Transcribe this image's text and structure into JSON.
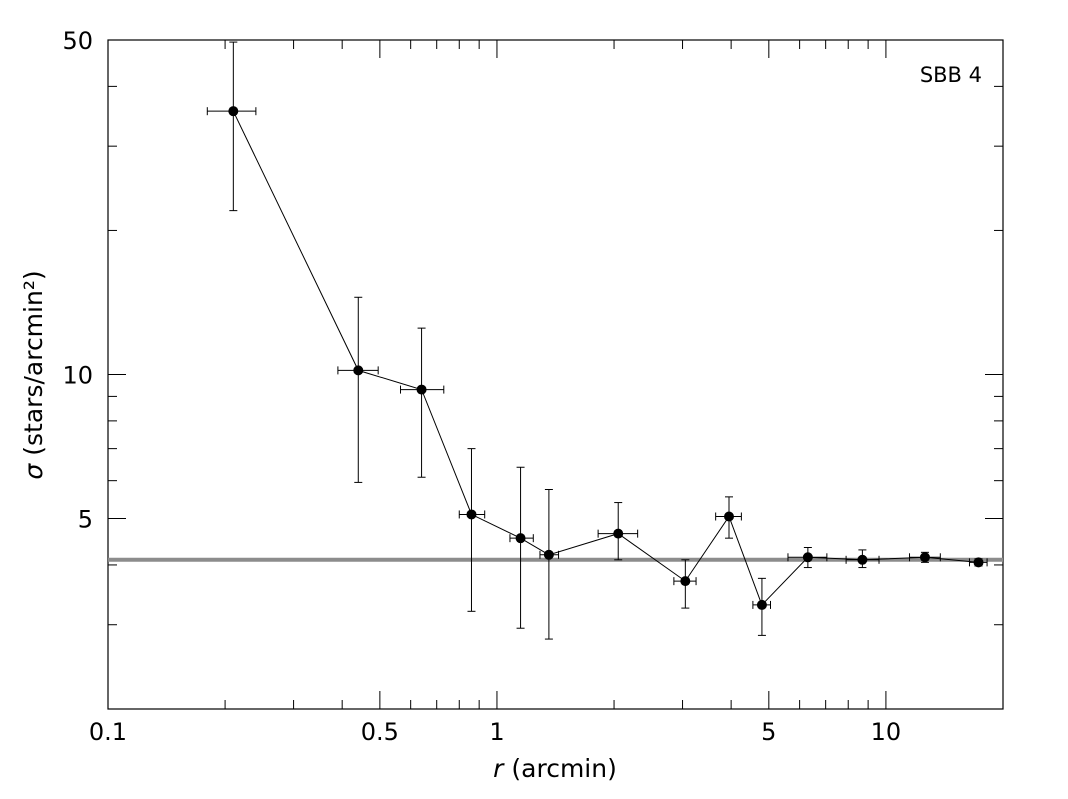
{
  "chart_data": {
    "type": "scatter",
    "xscale": "log",
    "yscale": "log",
    "xlim": [
      0.1,
      20
    ],
    "ylim": [
      2,
      50
    ],
    "xlabel_var": "r",
    "xlabel_unit": "(arcmin)",
    "ylabel_var": "σ",
    "ylabel_unit": "(stars/arcmin²)",
    "annotation": "SBB 4",
    "x_tick_labels": [
      {
        "value": 0.1,
        "label": "0.1"
      },
      {
        "value": 0.5,
        "label": "0.5"
      },
      {
        "value": 1,
        "label": "1"
      },
      {
        "value": 5,
        "label": "5"
      },
      {
        "value": 10,
        "label": "10"
      }
    ],
    "y_tick_labels": [
      {
        "value": 5,
        "label": "5"
      },
      {
        "value": 10,
        "label": "10"
      },
      {
        "value": 50,
        "label": "50"
      }
    ],
    "background_level": 4.1,
    "background_color": "#8c8c8c",
    "points": [
      {
        "x": 0.21,
        "y": 35.5,
        "xerr": [
          0.18,
          0.24
        ],
        "yerr": [
          22.0,
          49.5
        ]
      },
      {
        "x": 0.44,
        "y": 10.2,
        "xerr": [
          0.39,
          0.495
        ],
        "yerr": [
          5.95,
          14.5
        ]
      },
      {
        "x": 0.64,
        "y": 9.3,
        "xerr": [
          0.565,
          0.73
        ],
        "yerr": [
          6.1,
          12.5
        ]
      },
      {
        "x": 0.86,
        "y": 5.1,
        "xerr": [
          0.8,
          0.93
        ],
        "yerr": [
          3.2,
          7.0
        ]
      },
      {
        "x": 1.15,
        "y": 4.55,
        "xerr": [
          1.08,
          1.24
        ],
        "yerr": [
          2.95,
          6.4
        ]
      },
      {
        "x": 1.36,
        "y": 4.2,
        "xerr": [
          1.29,
          1.44
        ],
        "yerr": [
          2.8,
          5.75
        ]
      },
      {
        "x": 2.05,
        "y": 4.65,
        "xerr": [
          1.82,
          2.3
        ],
        "yerr": [
          4.1,
          5.4
        ]
      },
      {
        "x": 3.05,
        "y": 3.7,
        "xerr": [
          2.85,
          3.25
        ],
        "yerr": [
          3.25,
          4.1
        ]
      },
      {
        "x": 3.95,
        "y": 5.05,
        "xerr": [
          3.65,
          4.25
        ],
        "yerr": [
          4.55,
          5.55
        ]
      },
      {
        "x": 4.8,
        "y": 3.3,
        "xerr": [
          4.55,
          5.05
        ],
        "yerr": [
          2.85,
          3.75
        ]
      },
      {
        "x": 6.3,
        "y": 4.15,
        "xerr": [
          5.6,
          7.05
        ],
        "yerr": [
          3.95,
          4.35
        ]
      },
      {
        "x": 8.7,
        "y": 4.1,
        "xerr": [
          7.9,
          9.6
        ],
        "yerr": [
          3.95,
          4.3
        ]
      },
      {
        "x": 12.6,
        "y": 4.15,
        "xerr": [
          11.5,
          13.8
        ],
        "yerr": [
          4.05,
          4.25
        ]
      },
      {
        "x": 17.3,
        "y": 4.05,
        "xerr": [
          16.4,
          18.2
        ],
        "yerr": [
          3.98,
          4.12
        ]
      }
    ]
  }
}
